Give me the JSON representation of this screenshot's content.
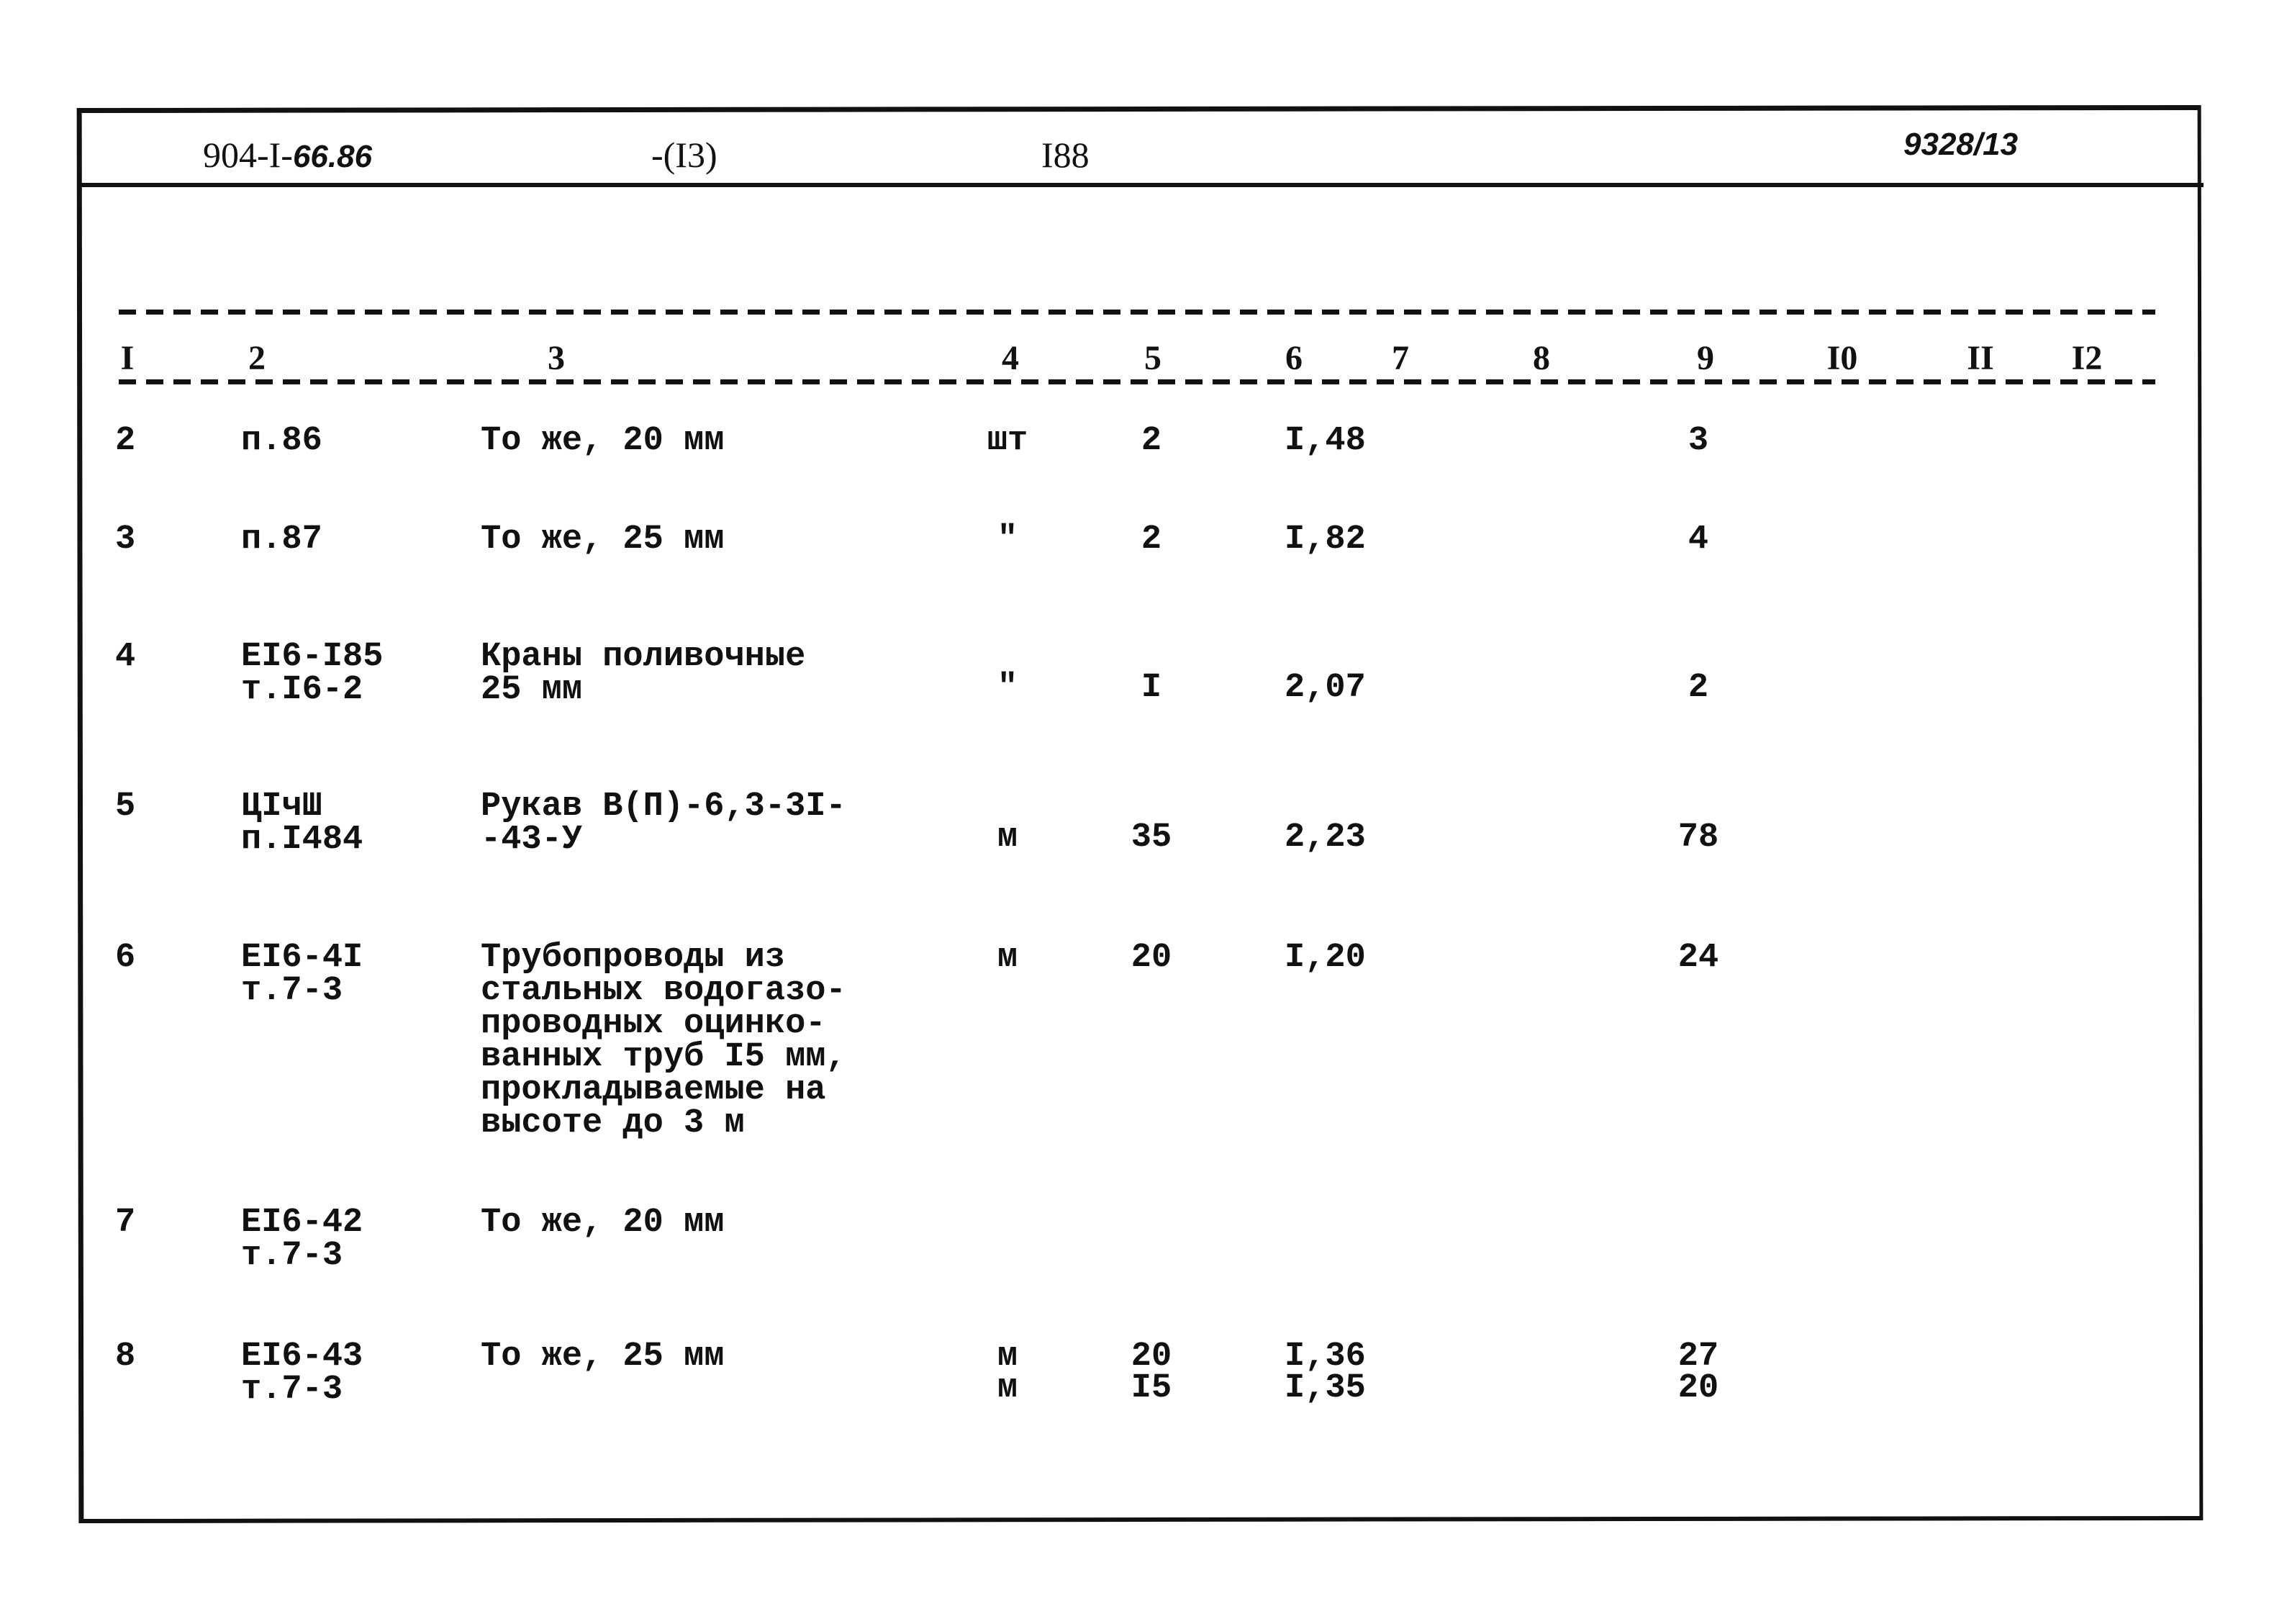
{
  "header": {
    "doc_code_printed": "904-I-",
    "doc_code_handwritten": "66.86",
    "part": "-(I3)",
    "page": "I88",
    "archive_number_handwritten": "9328/13"
  },
  "column_numbers": [
    "I",
    "2",
    "3",
    "4",
    "5",
    "6",
    "7",
    "8",
    "9",
    "I0",
    "II",
    "I2"
  ],
  "rows": [
    {
      "n": "2",
      "code": [
        "п.86"
      ],
      "name": [
        "То же, 20 мм"
      ],
      "unit": "шт",
      "qty": "2",
      "price": "I,48",
      "total": "3"
    },
    {
      "n": "3",
      "code": [
        "п.87"
      ],
      "name": [
        "То же, 25 мм"
      ],
      "unit": "\"",
      "qty": "2",
      "price": "I,82",
      "total": "4"
    },
    {
      "n": "4",
      "code": [
        "EI6-I85",
        "т.I6-2"
      ],
      "name": [
        "Краны поливочные",
        "25 мм"
      ],
      "unit": "\"",
      "qty": "I",
      "price": "2,07",
      "total": "2"
    },
    {
      "n": "5",
      "code": [
        "ЦIчШ",
        "п.I484"
      ],
      "name": [
        "Рукав В(П)-6,3-3I-",
        "-43-У"
      ],
      "unit": "м",
      "qty": "35",
      "price": "2,23",
      "total": "78"
    },
    {
      "n": "6",
      "code": [
        "EI6-4I",
        "т.7-3"
      ],
      "name": [
        "Трубопроводы из",
        "стальных водогазо-",
        "проводных оцинко-",
        "ванных труб I5 мм,",
        "прокладываемые на",
        "высоте до 3 м"
      ],
      "unit": "м",
      "qty": "20",
      "price": "I,20",
      "total": "24"
    },
    {
      "n": "7",
      "code": [
        "EI6-42",
        "т.7-3"
      ],
      "name": [
        "То же, 20 мм"
      ],
      "unit": "м",
      "qty": "I5",
      "price": "I,35",
      "total": "20"
    },
    {
      "n": "8",
      "code": [
        "EI6-43",
        "т.7-3"
      ],
      "name": [
        "То же, 25 мм"
      ],
      "unit": "м",
      "qty": "20",
      "price": "I,36",
      "total": "27"
    }
  ]
}
